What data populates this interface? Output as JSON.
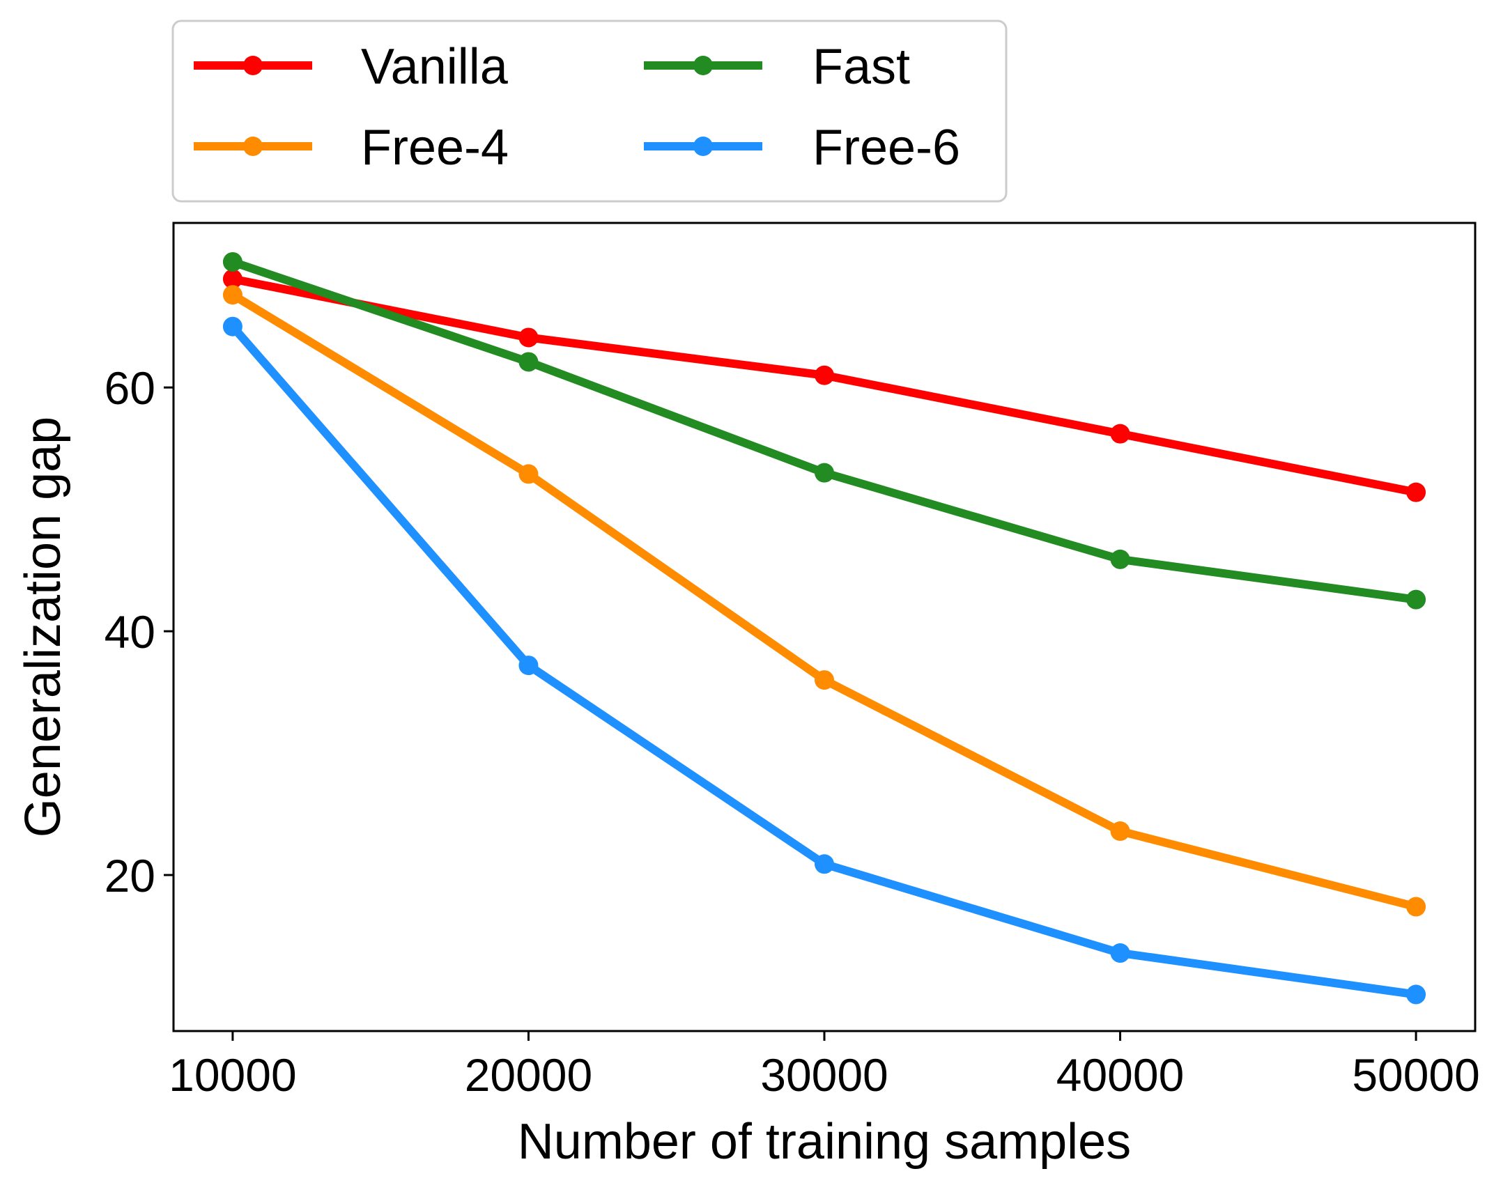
{
  "chart_data": {
    "type": "line",
    "title": "",
    "xlabel": "Number of training samples",
    "ylabel": "Generalization gap",
    "x": [
      10000,
      20000,
      30000,
      40000,
      50000
    ],
    "xlim": [
      8000,
      52000
    ],
    "ylim": [
      7.2,
      73.5
    ],
    "xticks": [
      10000,
      20000,
      30000,
      40000,
      50000
    ],
    "xtick_labels": [
      "10000",
      "20000",
      "30000",
      "40000",
      "50000"
    ],
    "yticks": [
      20,
      40,
      60
    ],
    "ytick_labels": [
      "20",
      "40",
      "60"
    ],
    "grid": false,
    "legend_position": "top-left outside",
    "series": [
      {
        "name": "Vanilla",
        "color": "#ff0000",
        "values": [
          68.9,
          64.1,
          61.0,
          56.2,
          51.4
        ]
      },
      {
        "name": "Fast",
        "color": "#228b22",
        "values": [
          70.3,
          62.1,
          53.0,
          45.9,
          42.6
        ]
      },
      {
        "name": "Free-4",
        "color": "#ff8c00",
        "values": [
          67.6,
          52.9,
          36.0,
          23.6,
          17.4
        ]
      },
      {
        "name": "Free-6",
        "color": "#1e90ff",
        "values": [
          65.0,
          37.2,
          20.9,
          13.6,
          10.2
        ]
      }
    ]
  }
}
